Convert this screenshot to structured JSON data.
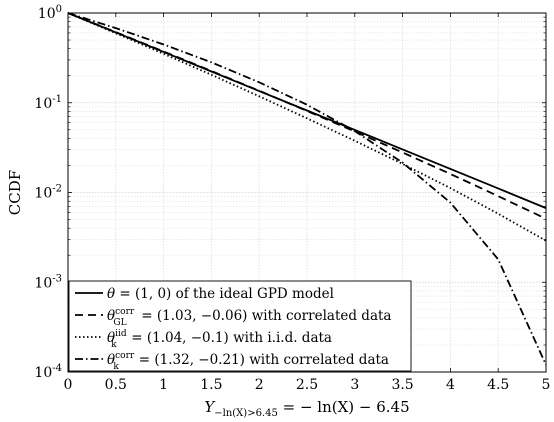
{
  "chart_data": {
    "type": "line",
    "title": "",
    "xlabel": "Y|−ln(X)>6.45 = −ln(X) − 6.45",
    "ylabel": "CCDF",
    "xlim": [
      0,
      5
    ],
    "ylim": [
      0.0001,
      1
    ],
    "yscale": "log",
    "grid": true,
    "legend_position": "bottom-left",
    "x_ticks": [
      "0",
      "0.5",
      "1",
      "1.5",
      "2",
      "2.5",
      "3",
      "3.5",
      "4",
      "4.5",
      "5"
    ],
    "y_ticks": [
      "10^-4",
      "10^-3",
      "10^-2",
      "10^-1",
      "10^0"
    ],
    "series": [
      {
        "name": "θ = (1,0) of the ideal GPD model",
        "style": "solid",
        "x": [
          0,
          0.5,
          1,
          1.5,
          2,
          2.5,
          3,
          3.5,
          4,
          4.5,
          5
        ],
        "y": [
          1,
          0.607,
          0.368,
          0.223,
          0.135,
          0.082,
          0.0498,
          0.0302,
          0.0183,
          0.0111,
          0.0067
        ]
      },
      {
        "name": "θ_GL^corr = (1.03, −0.06) with correlated data",
        "style": "dashed",
        "x": [
          0,
          0.5,
          1,
          1.5,
          2,
          2.5,
          3,
          3.5,
          4,
          4.5,
          5
        ],
        "y": [
          1,
          0.613,
          0.373,
          0.226,
          0.136,
          0.081,
          0.0478,
          0.0279,
          0.0161,
          0.0091,
          0.0051
        ]
      },
      {
        "name": "θ_k^iid = (1.04, −0.1) with i.i.d. data",
        "style": "dotted",
        "x": [
          0,
          0.5,
          1,
          1.5,
          2,
          2.5,
          3,
          3.5,
          4,
          4.5,
          5
        ],
        "y": [
          1,
          0.595,
          0.351,
          0.205,
          0.118,
          0.067,
          0.0377,
          0.0208,
          0.0112,
          0.0058,
          0.0029
        ]
      },
      {
        "name": "θ_k^corr = (1.32, −0.21) with correlated data",
        "style": "dashdot",
        "x": [
          0,
          0.5,
          1,
          1.5,
          2,
          2.5,
          3,
          3.5,
          4,
          4.5,
          5
        ],
        "y": [
          1,
          0.679,
          0.446,
          0.282,
          0.169,
          0.095,
          0.0483,
          0.0215,
          0.0077,
          0.0018,
          0.00012
        ]
      }
    ]
  },
  "legend": {
    "entries": [
      {
        "label_pre": "θ",
        "label_sub": "",
        "label_sup": "",
        "label_post": " = (1, 0) of the ideal GPD model"
      },
      {
        "label_pre": "θ",
        "label_sub": "GL",
        "label_sup": "corr",
        "label_post": " = (1.03, −0.06) with correlated data"
      },
      {
        "label_pre": "θ",
        "label_sub": "k",
        "label_sup": "iid",
        "label_post": " = (1.04, −0.1) with i.i.d. data"
      },
      {
        "label_pre": "θ",
        "label_sub": "k",
        "label_sup": "corr",
        "label_post": " = (1.32, −0.21) with correlated data"
      }
    ]
  },
  "axis_text": {
    "ylabel": "CCDF",
    "xlabel_main": "Y",
    "xlabel_sub": "−ln(X)>6.45",
    "xlabel_rest": " = − ln(X) − 6.45",
    "y_tick_base": "10",
    "y_tick_exponents": [
      "-4",
      "-3",
      "-2",
      "-1",
      "0"
    ]
  }
}
